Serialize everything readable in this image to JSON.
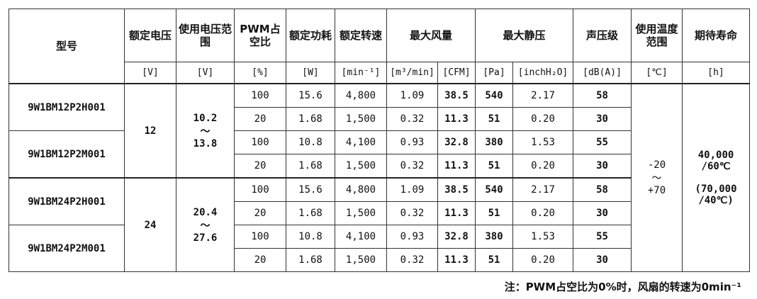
{
  "headers": {
    "model": "型号",
    "rated_voltage": "额定电压",
    "voltage_range": "使用电压范围",
    "pwm": "PWM占空比",
    "power": "额定功耗",
    "speed": "额定转速",
    "airflow": "最大风量",
    "pressure": "最大静压",
    "noise": "声压级",
    "temp": "使用温度范围",
    "life": "期待寿命"
  },
  "units": [
    "[V]",
    "[V]",
    "[%]",
    "[W]",
    "[min⁻¹]",
    "[m³/min]",
    "[CFM]",
    "[Pa]",
    "[inchH₂O]",
    "[dB(A)]",
    "[℃]",
    "[h]"
  ],
  "models": [
    "9W1BM12P2H001",
    "9W1BM12P2M001",
    "9W1BM24P2H001",
    "9W1BM24P2M001"
  ],
  "rated_voltages": [
    "12",
    "24"
  ],
  "voltage_ranges": [
    {
      "min": "10.2",
      "sep": "～",
      "max": "13.8"
    },
    {
      "min": "20.4",
      "sep": "～",
      "max": "27.6"
    }
  ],
  "rows": [
    [
      "100",
      "15.6",
      "4,800",
      "1.09",
      "38.5",
      "540",
      "2.17",
      "58"
    ],
    [
      "20",
      "1.68",
      "1,500",
      "0.32",
      "11.3",
      "51",
      "0.20",
      "30"
    ],
    [
      "100",
      "10.8",
      "4,100",
      "0.93",
      "32.8",
      "380",
      "1.53",
      "55"
    ],
    [
      "20",
      "1.68",
      "1,500",
      "0.32",
      "11.3",
      "51",
      "0.20",
      "30"
    ],
    [
      "100",
      "15.6",
      "4,800",
      "1.09",
      "38.5",
      "540",
      "2.17",
      "58"
    ],
    [
      "20",
      "1.68",
      "1,500",
      "0.32",
      "11.3",
      "51",
      "0.20",
      "30"
    ],
    [
      "100",
      "10.8",
      "4,100",
      "0.93",
      "32.8",
      "380",
      "1.53",
      "55"
    ],
    [
      "20",
      "1.68",
      "1,500",
      "0.32",
      "11.3",
      "51",
      "0.20",
      "30"
    ]
  ],
  "temp_range": {
    "min": "-20",
    "sep": "～",
    "max": "+70"
  },
  "life": {
    "line1": "40,000",
    "line2": "/60℃",
    "line3": "(70,000",
    "line4": "/40℃)"
  },
  "note": "注：PWM占空比为0%时，风扇的转速为0min⁻¹"
}
